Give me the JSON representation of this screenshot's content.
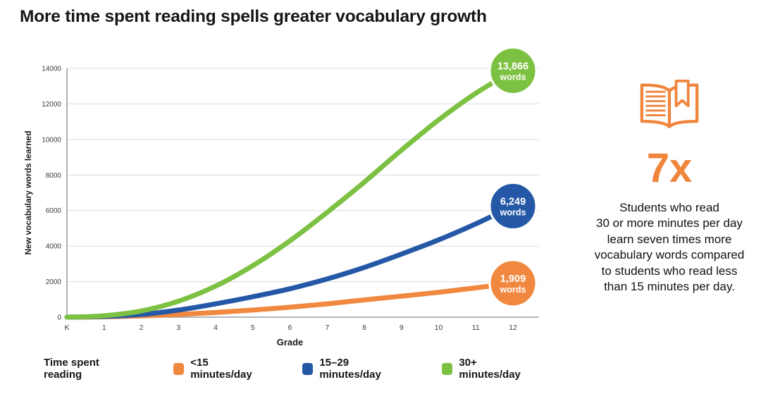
{
  "title": "More time spent reading spells greater vocabulary growth",
  "chart_data": {
    "type": "line",
    "x_categories": [
      "K",
      "1",
      "2",
      "3",
      "4",
      "5",
      "6",
      "7",
      "8",
      "9",
      "10",
      "11",
      "12"
    ],
    "xlabel": "Grade",
    "ylabel": "New vocabulary words learned",
    "ylim": [
      0,
      14000
    ],
    "yticks": [
      0,
      2000,
      4000,
      6000,
      8000,
      10000,
      12000,
      14000
    ],
    "grid": "horizontal",
    "legend_title": "Time spent reading",
    "legend_position": "bottom",
    "series": [
      {
        "name": "<15 minutes/day",
        "color": "#F1883F",
        "values": [
          0,
          20,
          70,
          150,
          260,
          400,
          560,
          750,
          970,
          1180,
          1400,
          1650,
          1909
        ],
        "end_label": "1,909",
        "end_label_unit": "words"
      },
      {
        "name": "15–29 minutes/day",
        "color": "#2458A6",
        "values": [
          0,
          40,
          150,
          400,
          750,
          1150,
          1600,
          2150,
          2800,
          3550,
          4350,
          5250,
          6249
        ],
        "end_label": "6,249",
        "end_label_unit": "words"
      },
      {
        "name": "30+ minutes/day",
        "color": "#7CC142",
        "values": [
          0,
          80,
          350,
          900,
          1750,
          2900,
          4300,
          5900,
          7600,
          9400,
          11100,
          12600,
          13866
        ],
        "end_label": "13,866",
        "end_label_unit": "words"
      }
    ]
  },
  "stat_panel": {
    "icon": "open-book-icon",
    "multiplier": "7x",
    "accent_color": "#F0853C",
    "description": "Students who read\n30 or more minutes per day\nlearn seven times more\nvocabulary words compared\nto students who read less\nthan 15 minutes per day."
  }
}
